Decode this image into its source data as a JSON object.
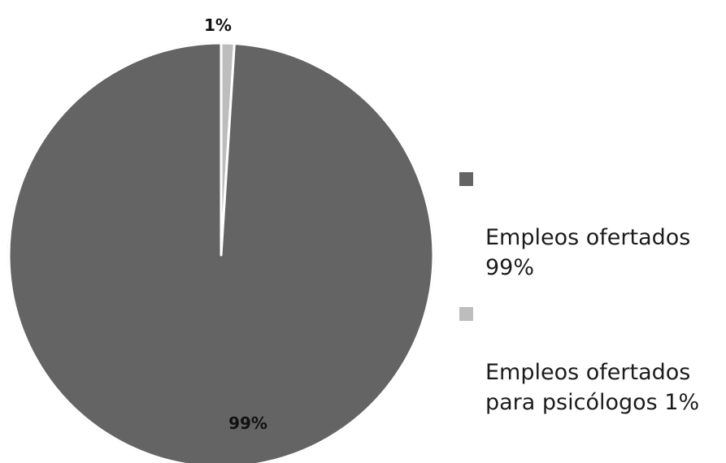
{
  "chart_data": {
    "type": "pie",
    "slices": [
      {
        "label": "Empleos ofertados 99%",
        "value": 99,
        "data_label": "99%",
        "color": "#646464"
      },
      {
        "label": "Empleos ofertados para psicólogos 1%",
        "value": 1,
        "data_label": "1%",
        "color": "#bdbdbd"
      }
    ],
    "legend_position": "right"
  }
}
